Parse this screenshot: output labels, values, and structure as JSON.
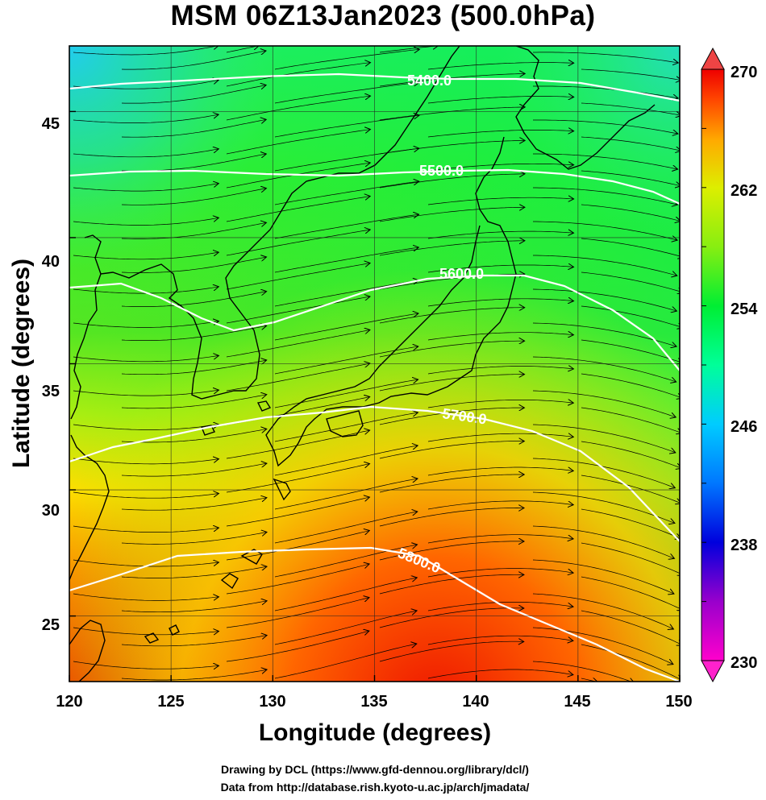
{
  "title": "MSM 06Z13Jan2023 (500.0hPa)",
  "xlabel": "Longitude (degrees)",
  "ylabel": "Latitude  (degrees)",
  "credits": {
    "line1": "Drawing by DCL (https://www.gfd-dennou.org/library/dcl/)",
    "line2": "Data from http://database.rish.kyoto-u.ac.jp/arch/jmadata/"
  },
  "map": {
    "lon_range": [
      120,
      150
    ],
    "lat_range": [
      22.4,
      47.6
    ],
    "x_ticks": [
      "120",
      "125",
      "130",
      "135",
      "140",
      "145",
      "150"
    ],
    "y_ticks": [
      "25",
      "30",
      "35",
      "40",
      "45"
    ],
    "grid": true,
    "field": "temperature shading with wind streamlines",
    "colorbar": {
      "min": 230,
      "max": 270,
      "labels": [
        "270",
        "262",
        "254",
        "246",
        "238",
        "230"
      ],
      "colors": [
        "#ff00cc",
        "#9900cc",
        "#0000dd",
        "#0077ff",
        "#00ccff",
        "#00ff99",
        "#00ee33",
        "#66ee11",
        "#ccee00",
        "#ffcc00",
        "#ff7700",
        "#ff3300",
        "#ee0000"
      ]
    },
    "contours": [
      {
        "label": "5400.0"
      },
      {
        "label": "5500.0"
      },
      {
        "label": "5600.0"
      },
      {
        "label": "5700.0"
      },
      {
        "label": "5800.0"
      }
    ]
  }
}
